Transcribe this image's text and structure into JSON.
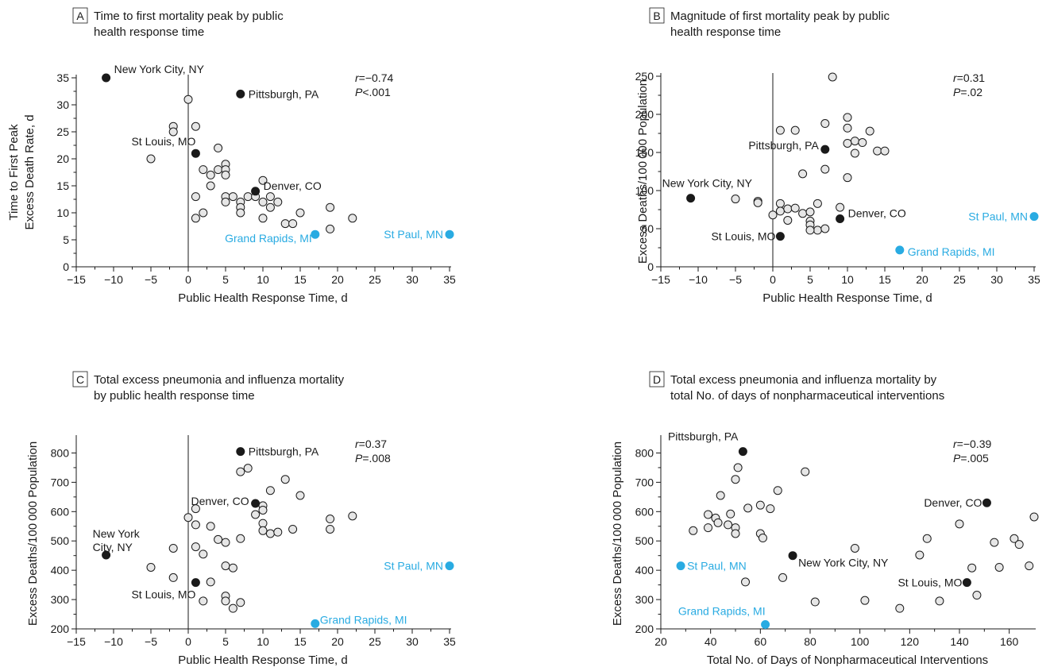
{
  "colors": {
    "highlight": "#29abe2",
    "dark": "#1a1a1a",
    "open_fill": "#e6e6e6"
  },
  "chart_data": [
    {
      "panel": "A",
      "type": "scatter",
      "title": [
        "Time to first mortality peak by public",
        "health response time"
      ],
      "xlabel": "Public Health Response Time, d",
      "ylabel": [
        "Time to First Peak",
        "Excess Death Rate, d"
      ],
      "xlim": [
        -15,
        35
      ],
      "ylim": [
        0,
        35
      ],
      "xticks": [
        -15,
        -10,
        -5,
        0,
        5,
        10,
        15,
        20,
        25,
        30,
        35
      ],
      "yticks": [
        0,
        5,
        10,
        15,
        20,
        25,
        30,
        35
      ],
      "zero_line": true,
      "annotation": {
        "r_label": "r",
        "r_value": "=−0.74",
        "p_label": "P",
        "p_value": "<.001"
      },
      "points": [
        [
          -2,
          26
        ],
        [
          -2,
          25
        ],
        [
          -5,
          20
        ],
        [
          0,
          31
        ],
        [
          1,
          26
        ],
        [
          1,
          13
        ],
        [
          1,
          9
        ],
        [
          2,
          18
        ],
        [
          2,
          10
        ],
        [
          3,
          17
        ],
        [
          3,
          15
        ],
        [
          4,
          22
        ],
        [
          4,
          18
        ],
        [
          5,
          19
        ],
        [
          5,
          18
        ],
        [
          5,
          17
        ],
        [
          5,
          13
        ],
        [
          5,
          12
        ],
        [
          6,
          13
        ],
        [
          7,
          12
        ],
        [
          7,
          11
        ],
        [
          7,
          10
        ],
        [
          8,
          13
        ],
        [
          9,
          13
        ],
        [
          10,
          16
        ],
        [
          10,
          12
        ],
        [
          10,
          9
        ],
        [
          11,
          13
        ],
        [
          11,
          11
        ],
        [
          12,
          12
        ],
        [
          13,
          8
        ],
        [
          14,
          8
        ],
        [
          15,
          10
        ],
        [
          19,
          11
        ],
        [
          19,
          7
        ],
        [
          22,
          9
        ]
      ],
      "labeled": [
        {
          "name": "New York City, NY",
          "x": -11,
          "y": 35,
          "color": "dark"
        },
        {
          "name": "Pittsburgh, PA",
          "x": 7,
          "y": 32,
          "color": "dark"
        },
        {
          "name": "St Louis, MO",
          "x": 1,
          "y": 21,
          "color": "dark"
        },
        {
          "name": "Denver, CO",
          "x": 9,
          "y": 14,
          "color": "dark"
        },
        {
          "name": "Grand Rapids, MI",
          "x": 17,
          "y": 6,
          "color": "highlight"
        },
        {
          "name": "St Paul, MN",
          "x": 35,
          "y": 6,
          "color": "highlight"
        }
      ]
    },
    {
      "panel": "B",
      "type": "scatter",
      "title": [
        "Magnitude of first mortality peak by public",
        "health response time"
      ],
      "xlabel": "Public Health Response Time, d",
      "ylabel": [
        "Excess Deaths/100 000 Population"
      ],
      "xlim": [
        -15,
        35
      ],
      "ylim": [
        0,
        250
      ],
      "xticks": [
        -15,
        -10,
        -5,
        0,
        5,
        10,
        15,
        20,
        25,
        30,
        35
      ],
      "yticks": [
        0,
        50,
        100,
        150,
        200,
        250
      ],
      "zero_line": true,
      "annotation": {
        "r_label": "r",
        "r_value": "=0.31",
        "p_label": "P",
        "p_value": "=.02"
      },
      "points": [
        [
          8,
          249
        ],
        [
          10,
          196
        ],
        [
          7,
          188
        ],
        [
          1,
          179
        ],
        [
          3,
          179
        ],
        [
          13,
          178
        ],
        [
          10,
          182
        ],
        [
          11,
          165
        ],
        [
          12,
          163
        ],
        [
          10,
          162
        ],
        [
          14,
          152
        ],
        [
          15,
          152
        ],
        [
          11,
          149
        ],
        [
          7,
          128
        ],
        [
          4,
          122
        ],
        [
          10,
          117
        ],
        [
          -5,
          89
        ],
        [
          -2,
          86
        ],
        [
          -2,
          84
        ],
        [
          1,
          83
        ],
        [
          0,
          68
        ],
        [
          1,
          73
        ],
        [
          2,
          76
        ],
        [
          3,
          77
        ],
        [
          2,
          61
        ],
        [
          4,
          70
        ],
        [
          5,
          72
        ],
        [
          6,
          83
        ],
        [
          5,
          60
        ],
        [
          5,
          55
        ],
        [
          6,
          48
        ],
        [
          9,
          78
        ],
        [
          7,
          50
        ],
        [
          5,
          48
        ]
      ],
      "labeled": [
        {
          "name": "Pittsburgh, PA",
          "x": 7,
          "y": 154,
          "color": "dark"
        },
        {
          "name": "New York City, NY",
          "x": -11,
          "y": 90,
          "color": "dark"
        },
        {
          "name": "Denver, CO",
          "x": 9,
          "y": 63,
          "color": "dark"
        },
        {
          "name": "St Louis, MO",
          "x": 1,
          "y": 40,
          "color": "dark"
        },
        {
          "name": "St Paul, MN",
          "x": 35,
          "y": 66,
          "color": "highlight"
        },
        {
          "name": "Grand Rapids, MI",
          "x": 17,
          "y": 22,
          "color": "highlight"
        }
      ]
    },
    {
      "panel": "C",
      "type": "scatter",
      "title": [
        "Total excess pneumonia and influenza mortality",
        "by public health response time"
      ],
      "xlabel": "Public Health Response Time, d",
      "ylabel": [
        "Excess Deaths/100 000 Population"
      ],
      "xlim": [
        -15,
        35
      ],
      "ylim": [
        200,
        850
      ],
      "xticks": [
        -15,
        -10,
        -5,
        0,
        5,
        10,
        15,
        20,
        25,
        30,
        35
      ],
      "yticks": [
        200,
        300,
        400,
        500,
        600,
        700,
        800
      ],
      "zero_line": true,
      "annotation": {
        "r_label": "r",
        "r_value": "=0.37",
        "p_label": "P",
        "p_value": "=.008"
      },
      "points": [
        [
          8,
          748
        ],
        [
          7,
          736
        ],
        [
          13,
          710
        ],
        [
          11,
          672
        ],
        [
          15,
          655
        ],
        [
          1,
          610
        ],
        [
          10,
          620
        ],
        [
          10,
          605
        ],
        [
          9,
          590
        ],
        [
          0,
          580
        ],
        [
          19,
          575
        ],
        [
          22,
          585
        ],
        [
          1,
          555
        ],
        [
          3,
          550
        ],
        [
          10,
          560
        ],
        [
          10,
          535
        ],
        [
          11,
          525
        ],
        [
          12,
          530
        ],
        [
          14,
          540
        ],
        [
          19,
          540
        ],
        [
          4,
          505
        ],
        [
          7,
          508
        ],
        [
          5,
          495
        ],
        [
          -2,
          475
        ],
        [
          1,
          480
        ],
        [
          2,
          455
        ],
        [
          -5,
          410
        ],
        [
          5,
          415
        ],
        [
          6,
          408
        ],
        [
          -2,
          375
        ],
        [
          3,
          360
        ],
        [
          5,
          312
        ],
        [
          2,
          295
        ],
        [
          5,
          295
        ],
        [
          7,
          290
        ],
        [
          6,
          270
        ]
      ],
      "labeled": [
        {
          "name": "Pittsburgh, PA",
          "x": 7,
          "y": 805,
          "color": "dark"
        },
        {
          "name": "Denver, CO",
          "x": 9,
          "y": 628,
          "color": "dark"
        },
        {
          "name": "New York",
          "name2": "City, NY",
          "x": -11,
          "y": 452,
          "color": "dark"
        },
        {
          "name": "St Louis, MO",
          "x": 1,
          "y": 358,
          "color": "dark"
        },
        {
          "name": "St Paul, MN",
          "x": 35,
          "y": 415,
          "color": "highlight"
        },
        {
          "name": "Grand Rapids, MI",
          "x": 17,
          "y": 218,
          "color": "highlight"
        }
      ]
    },
    {
      "panel": "D",
      "type": "scatter",
      "title": [
        "Total excess pneumonia and influenza mortality by",
        "total No. of days of nonpharmaceutical interventions"
      ],
      "xlabel": "Total No. of Days of Nonpharmaceutical Interventions",
      "ylabel": [
        "Excess Deaths/100 000 Population"
      ],
      "xlim": [
        20,
        170
      ],
      "ylim": [
        200,
        850
      ],
      "xticks": [
        20,
        40,
        60,
        80,
        100,
        120,
        140,
        160
      ],
      "yticks": [
        200,
        300,
        400,
        500,
        600,
        700,
        800
      ],
      "zero_line": false,
      "annotation": {
        "r_label": "r",
        "r_value": "=−0.39",
        "p_label": "P",
        "p_value": "=.005"
      },
      "points": [
        [
          51,
          750
        ],
        [
          78,
          736
        ],
        [
          50,
          710
        ],
        [
          67,
          672
        ],
        [
          44,
          655
        ],
        [
          39,
          590
        ],
        [
          48,
          592
        ],
        [
          42,
          578
        ],
        [
          43,
          562
        ],
        [
          47,
          555
        ],
        [
          50,
          545
        ],
        [
          55,
          612
        ],
        [
          60,
          622
        ],
        [
          64,
          610
        ],
        [
          39,
          545
        ],
        [
          33,
          535
        ],
        [
          50,
          525
        ],
        [
          60,
          525
        ],
        [
          61,
          510
        ],
        [
          54,
          360
        ],
        [
          69,
          375
        ],
        [
          82,
          292
        ],
        [
          98,
          475
        ],
        [
          102,
          297
        ],
        [
          116,
          270
        ],
        [
          124,
          452
        ],
        [
          127,
          508
        ],
        [
          132,
          295
        ],
        [
          140,
          558
        ],
        [
          145,
          408
        ],
        [
          147,
          315
        ],
        [
          154,
          495
        ],
        [
          156,
          410
        ],
        [
          162,
          508
        ],
        [
          164,
          488
        ],
        [
          168,
          415
        ],
        [
          170,
          582
        ]
      ],
      "labeled": [
        {
          "name": "Pittsburgh, PA",
          "x": 53,
          "y": 805,
          "color": "dark"
        },
        {
          "name": "Denver, CO",
          "x": 151,
          "y": 630,
          "color": "dark"
        },
        {
          "name": "New York City, NY",
          "x": 73,
          "y": 450,
          "color": "dark"
        },
        {
          "name": "St Louis, MO",
          "x": 143,
          "y": 358,
          "color": "dark"
        },
        {
          "name": "St Paul, MN",
          "x": 28,
          "y": 415,
          "color": "highlight"
        },
        {
          "name": "Grand Rapids, MI",
          "x": 62,
          "y": 215,
          "color": "highlight"
        }
      ]
    }
  ]
}
